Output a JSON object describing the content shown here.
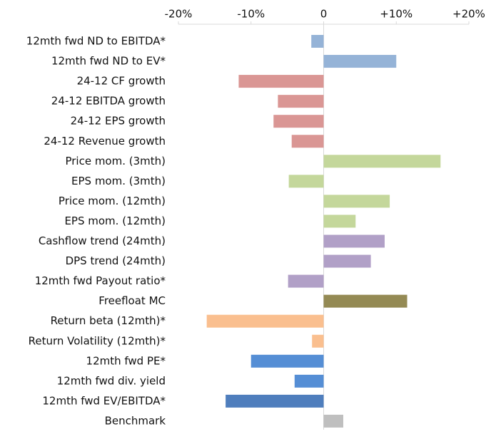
{
  "chart_data": {
    "type": "hbar",
    "categories": [
      "12mth fwd ND to EBITDA*",
      "12mth fwd ND to EV*",
      "24-12 CF growth",
      "24-12 EBITDA growth",
      "24-12 EPS growth",
      "24-12 Revenue growth",
      "Price mom. (3mth)",
      "EPS mom. (3mth)",
      "Price mom. (12mth)",
      "EPS mom. (12mth)",
      "Cashflow trend (24mth)",
      "DPS trend (24mth)",
      "12mth fwd Payout ratio*",
      "Freefloat MC",
      "Return beta (12mth)*",
      "Return Volatility (12mth)*",
      "12mth fwd PE*",
      "12mth fwd div. yield",
      "12mth fwd EV/EBITDA*",
      "Benchmark"
    ],
    "values": [
      -1.7,
      10.0,
      -11.7,
      -6.3,
      -6.9,
      -4.4,
      16.1,
      -4.8,
      9.1,
      4.4,
      8.4,
      6.5,
      -4.9,
      11.5,
      -16.1,
      -1.6,
      -10.0,
      -4.0,
      -13.5,
      2.7
    ],
    "colors": [
      "#95b3d7",
      "#95b3d7",
      "#da9694",
      "#da9694",
      "#da9694",
      "#da9694",
      "#c4d79b",
      "#c4d79b",
      "#c4d79b",
      "#c4d79b",
      "#b1a0c7",
      "#b1a0c7",
      "#b1a0c7",
      "#948a54",
      "#fabf8f",
      "#fabf8f",
      "#558ed5",
      "#558ed5",
      "#4f7ebd",
      "#bfbfbf"
    ],
    "xlim": [
      -20,
      20
    ],
    "xticks": [
      {
        "value": -20,
        "label": "-20%"
      },
      {
        "value": -10,
        "label": "-10%"
      },
      0,
      {
        "value": 10,
        "label": "+10%"
      },
      {
        "value": 20,
        "label": "+20%"
      }
    ]
  }
}
